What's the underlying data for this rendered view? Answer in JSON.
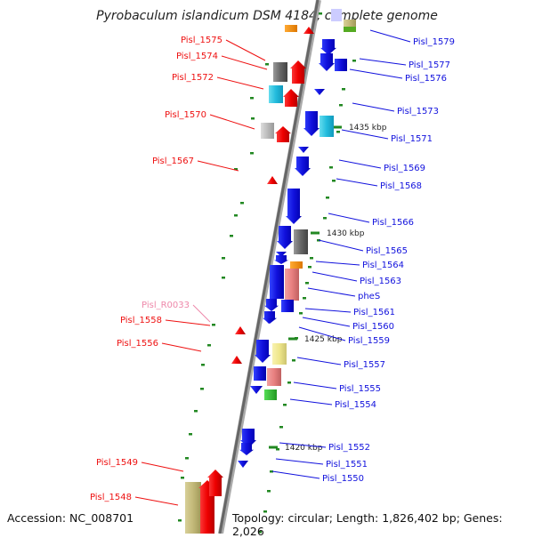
{
  "title": "Pyrobaculum islandicum DSM 4184, complete genome",
  "footer": {
    "accession": "Accession: NC_008701",
    "summary": "Topology: circular; Length: 1,826,402 bp; Genes: 2,026"
  },
  "colors": {
    "backbone": "#777777",
    "forward_gene": "#ee1111",
    "reverse_gene": "#1111dd",
    "tick": "#228822",
    "rna_label": "#ee88aa"
  },
  "kbp_marks": [
    {
      "label": "1435 kbp"
    },
    {
      "label": "1430 kbp"
    },
    {
      "label": "1425 kbp"
    },
    {
      "label": "1420 kbp"
    }
  ],
  "left_labels": [
    {
      "text": "Pisl_1575",
      "kind": "gene"
    },
    {
      "text": "Pisl_1574",
      "kind": "gene"
    },
    {
      "text": "Pisl_1572",
      "kind": "gene"
    },
    {
      "text": "Pisl_1570",
      "kind": "gene"
    },
    {
      "text": "Pisl_1567",
      "kind": "gene"
    },
    {
      "text": "Pisl_R0033",
      "kind": "rna"
    },
    {
      "text": "Pisl_1558",
      "kind": "gene"
    },
    {
      "text": "Pisl_1556",
      "kind": "gene"
    },
    {
      "text": "Pisl_1549",
      "kind": "gene"
    },
    {
      "text": "Pisl_1548",
      "kind": "gene"
    }
  ],
  "right_labels": [
    {
      "text": "Pisl_1579"
    },
    {
      "text": "Pisl_1577"
    },
    {
      "text": "Pisl_1576"
    },
    {
      "text": "Pisl_1573"
    },
    {
      "text": "Pisl_1571"
    },
    {
      "text": "Pisl_1569"
    },
    {
      "text": "Pisl_1568"
    },
    {
      "text": "Pisl_1566"
    },
    {
      "text": "Pisl_1565"
    },
    {
      "text": "Pisl_1564"
    },
    {
      "text": "Pisl_1563"
    },
    {
      "text": "pheS"
    },
    {
      "text": "Pisl_1561"
    },
    {
      "text": "Pisl_1560"
    },
    {
      "text": "Pisl_1559"
    },
    {
      "text": "Pisl_1557"
    },
    {
      "text": "Pisl_1555"
    },
    {
      "text": "Pisl_1554"
    },
    {
      "text": "Pisl_1552"
    },
    {
      "text": "Pisl_1551"
    },
    {
      "text": "Pisl_1550"
    }
  ]
}
